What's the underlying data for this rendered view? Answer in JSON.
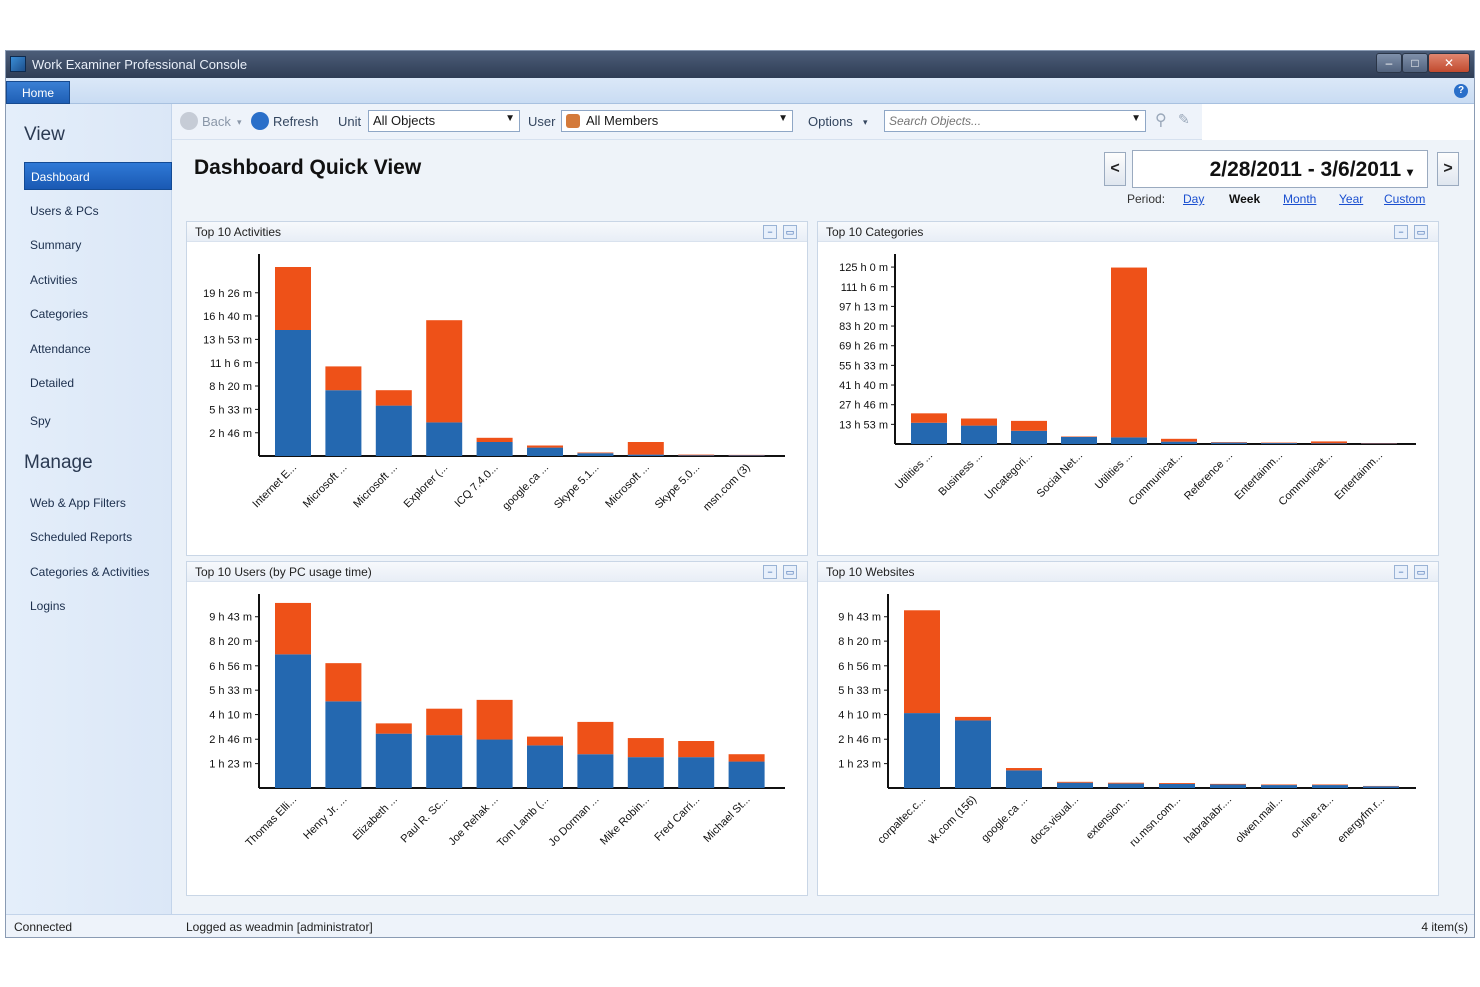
{
  "window": {
    "title": "Work Examiner Professional Console",
    "controls": [
      "–",
      "□",
      "✕"
    ]
  },
  "ribbon": {
    "home_tab": "Home",
    "help": "?"
  },
  "sidebar": {
    "view_heading": "View",
    "view_items": [
      {
        "label": "Dashboard",
        "active": true
      },
      {
        "label": "Users & PCs"
      },
      {
        "label": "Summary"
      },
      {
        "label": "Activities"
      },
      {
        "label": "Categories"
      },
      {
        "label": "Attendance"
      },
      {
        "label": "Detailed"
      },
      {
        "label": "Spy"
      }
    ],
    "manage_heading": "Manage",
    "manage_items": [
      {
        "label": "Web & App Filters"
      },
      {
        "label": "Scheduled Reports"
      },
      {
        "label": "Categories & Activities"
      },
      {
        "label": "Logins"
      }
    ]
  },
  "toolbar": {
    "back_label": "Back",
    "refresh_label": "Refresh",
    "unit_label": "Unit",
    "unit_value": "All Objects",
    "user_label": "User",
    "user_value": "All Members",
    "options_label": "Options",
    "search_placeholder": "Search Objects..."
  },
  "main": {
    "page_title": "Dashboard Quick View",
    "date_range": "2/28/2011 - 3/6/2011",
    "period_label": "Period:",
    "periods": [
      {
        "label": "Day",
        "link": true
      },
      {
        "label": "Week",
        "link": false
      },
      {
        "label": "Month",
        "link": true
      },
      {
        "label": "Year",
        "link": true
      },
      {
        "label": "Custom",
        "link": true
      }
    ]
  },
  "colors": {
    "series_primary": "#2468b0",
    "series_secondary": "#ee5118"
  },
  "chart_data": [
    {
      "type": "bar",
      "stacked": true,
      "title": "Top 10 Activities",
      "yticks": [
        "2 h 46 m",
        "5 h 33 m",
        "8 h 20 m",
        "11 h 6 m",
        "13 h 53 m",
        "16 h 40 m",
        "19 h 26 m"
      ],
      "ylim": [
        0,
        1400
      ],
      "yticks_values": [
        166,
        333,
        500,
        666,
        833,
        1000,
        1166
      ],
      "categories": [
        "Internet E...",
        "Microsoft ...",
        "Microsoft ...",
        "Explorer (...",
        "ICQ 7.4.0...",
        "google.ca ...",
        "Skype 5.1...",
        "Microsoft ...",
        "Skype 5.0...",
        "msn.com (3)"
      ],
      "series": [
        {
          "values": [
            900,
            470,
            360,
            240,
            100,
            60,
            20,
            10,
            5,
            5
          ]
        },
        {
          "values": [
            450,
            170,
            110,
            730,
            30,
            15,
            5,
            90,
            5,
            3
          ]
        }
      ]
    },
    {
      "type": "bar",
      "stacked": true,
      "title": "Top 10 Categories",
      "yticks": [
        "13 h 53 m",
        "27 h 46 m",
        "41 h 40 m",
        "55 h 33 m",
        "69 h 26 m",
        "83 h 20 m",
        "97 h 13 m",
        "111 h 6 m",
        "125 h 0 m"
      ],
      "ylim": [
        0,
        7800
      ],
      "yticks_values": [
        833,
        1666,
        2500,
        3333,
        4166,
        5000,
        5833,
        6666,
        7500
      ],
      "categories": [
        "Utilities ...",
        "Business ...",
        "Uncategori...",
        "Social Net...",
        "Utilities ...",
        "Communicat...",
        "Reference ...",
        "Entertainm...",
        "Communicat...",
        "Entertainm..."
      ],
      "series": [
        {
          "values": [
            900,
            780,
            560,
            300,
            280,
            100,
            60,
            40,
            30,
            20
          ]
        },
        {
          "values": [
            400,
            300,
            420,
            20,
            7200,
            120,
            20,
            20,
            80,
            15
          ]
        }
      ]
    },
    {
      "type": "bar",
      "stacked": true,
      "title": "Top 10 Users (by PC usage time)",
      "yticks": [
        "1 h 23 m",
        "2 h 46 m",
        "4 h 10 m",
        "5 h 33 m",
        "6 h 56 m",
        "8 h 20 m",
        "9 h 43 m"
      ],
      "ylim": [
        0,
        640
      ],
      "yticks_values": [
        83,
        166,
        250,
        333,
        416,
        500,
        583
      ],
      "categories": [
        "Thomas Elli...",
        "Henry Jr. ...",
        "Elizabeth ...",
        "Paul R. Sc...",
        "Joe Rehak ...",
        "Tom Lamb (...",
        "Jo Dorman ...",
        "Mike Robin...",
        "Fred Carri...",
        "Michael St..."
      ],
      "series": [
        {
          "values": [
            455,
            295,
            185,
            180,
            165,
            145,
            115,
            105,
            105,
            90
          ]
        },
        {
          "values": [
            175,
            130,
            35,
            90,
            135,
            30,
            110,
            65,
            55,
            25
          ]
        }
      ]
    },
    {
      "type": "bar",
      "stacked": true,
      "title": "Top 10 Websites",
      "yticks": [
        "1 h 23 m",
        "2 h 46 m",
        "4 h 10 m",
        "5 h 33 m",
        "6 h 56 m",
        "8 h 20 m",
        "9 h 43 m"
      ],
      "ylim": [
        0,
        640
      ],
      "yticks_values": [
        83,
        166,
        250,
        333,
        416,
        500,
        583
      ],
      "categories": [
        "corpaltec.c...",
        "vk.com (156)",
        "google.ca ...",
        "docs.visual...",
        "extension...",
        "ru.msn.com...",
        "habrahabr....",
        "olwen.mail...",
        "on-line.ra...",
        "energyfm.r..."
      ],
      "series": [
        {
          "values": [
            255,
            230,
            60,
            18,
            15,
            14,
            12,
            10,
            10,
            6
          ]
        },
        {
          "values": [
            350,
            12,
            8,
            3,
            3,
            3,
            2,
            2,
            2,
            1
          ]
        }
      ]
    }
  ],
  "status": {
    "connection": "Connected",
    "logged_as": "Logged as weadmin [administrator]",
    "items": "4 item(s)"
  }
}
